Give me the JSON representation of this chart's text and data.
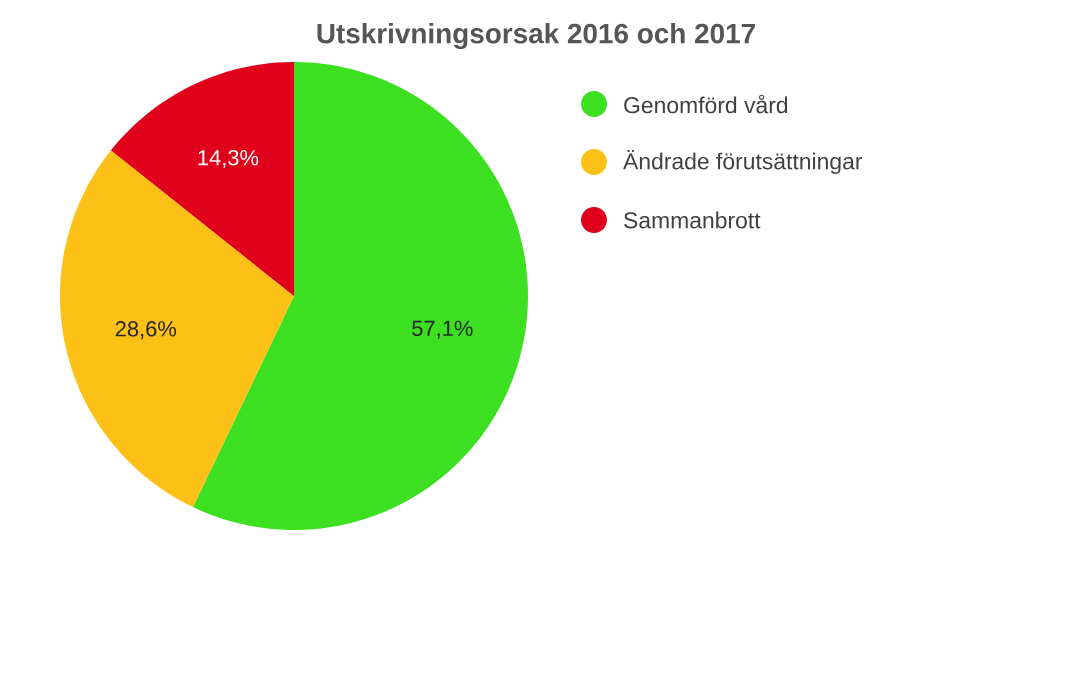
{
  "chart_data": {
    "type": "pie",
    "title": "Utskrivningsorsak 2016 och 2017",
    "categories": [
      "Genomförd vård",
      "Ändrade förutsättningar",
      "Sammanbrott"
    ],
    "values": [
      57.1,
      28.6,
      14.3
    ],
    "colors": [
      "#3ce021",
      "#fcc016",
      "#e0001b"
    ],
    "value_labels": [
      "57,1%",
      "28,6%",
      "14,3%"
    ],
    "legend": "right"
  }
}
